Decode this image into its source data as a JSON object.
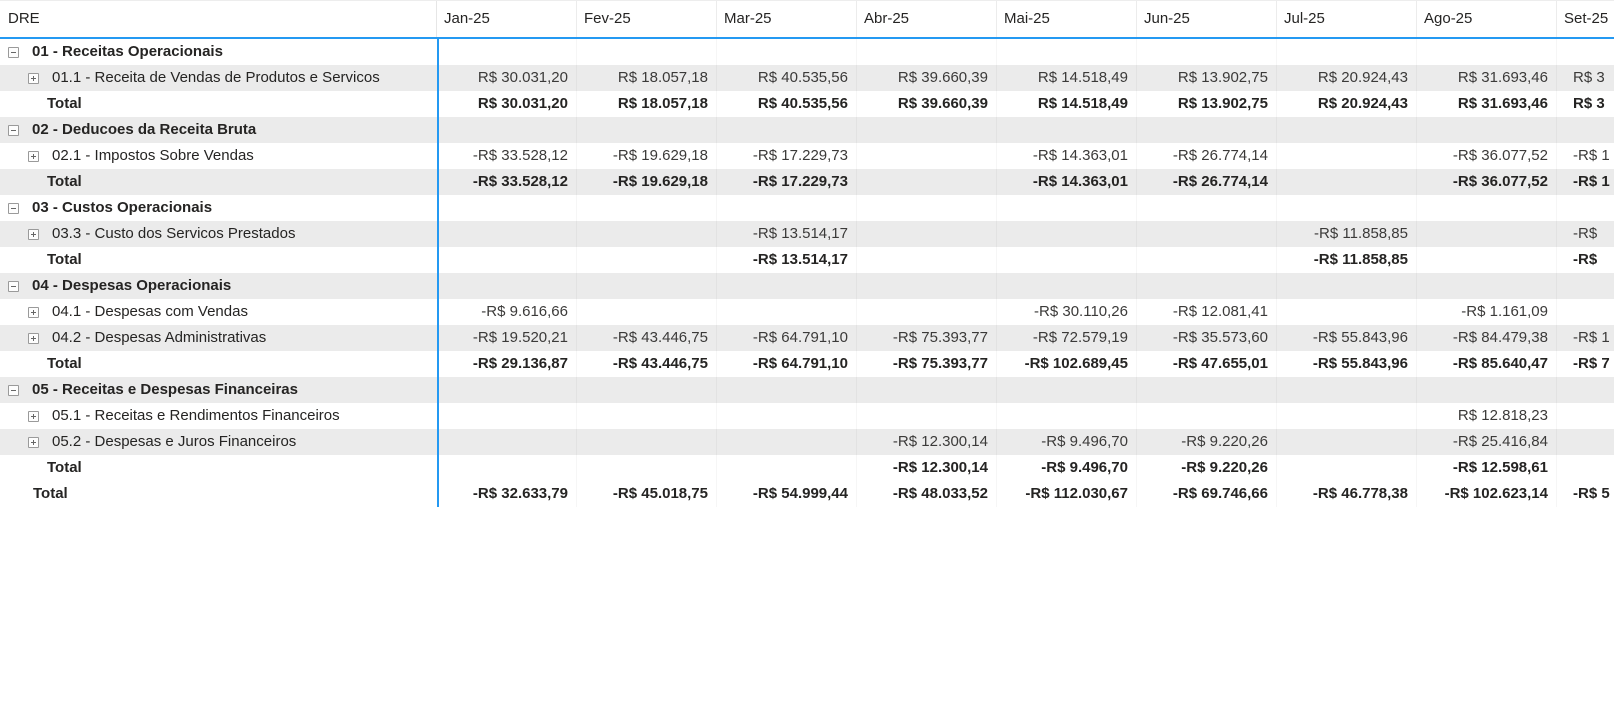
{
  "colors": {
    "accent_blue": "#2499f2",
    "alt_row_background": "#ebebeb",
    "text": "#252423",
    "value_text": "#3b3a39",
    "gridline": "#ececec"
  },
  "table": {
    "corner_label": "DRE",
    "columns": [
      "Jan-25",
      "Fev-25",
      "Mar-25",
      "Abr-25",
      "Mai-25",
      "Jun-25",
      "Jul-25",
      "Ago-25",
      "Set-25"
    ],
    "rows": [
      {
        "type": "group",
        "icon": "collapse",
        "label": "01 - Receitas Operacionais",
        "values": [
          "",
          "",
          "",
          "",
          "",
          "",
          "",
          "",
          ""
        ]
      },
      {
        "type": "item",
        "icon": "expand",
        "label": "01.1 - Receita de Vendas de Produtos e Servicos",
        "values": [
          "R$ 30.031,20",
          "R$ 18.057,18",
          "R$ 40.535,56",
          "R$ 39.660,39",
          "R$ 14.518,49",
          "R$ 13.902,75",
          "R$ 20.924,43",
          "R$ 31.693,46",
          "R$ 3"
        ]
      },
      {
        "type": "subtotal",
        "icon": "",
        "label": "Total",
        "values": [
          "R$ 30.031,20",
          "R$ 18.057,18",
          "R$ 40.535,56",
          "R$ 39.660,39",
          "R$ 14.518,49",
          "R$ 13.902,75",
          "R$ 20.924,43",
          "R$ 31.693,46",
          "R$ 3"
        ]
      },
      {
        "type": "group",
        "icon": "collapse",
        "label": "02 - Deducoes da Receita Bruta",
        "values": [
          "",
          "",
          "",
          "",
          "",
          "",
          "",
          "",
          ""
        ]
      },
      {
        "type": "item",
        "icon": "expand",
        "label": "02.1 - Impostos Sobre Vendas",
        "values": [
          "-R$ 33.528,12",
          "-R$ 19.629,18",
          "-R$ 17.229,73",
          "",
          "-R$ 14.363,01",
          "-R$ 26.774,14",
          "",
          "-R$ 36.077,52",
          "-R$ 1"
        ]
      },
      {
        "type": "subtotal",
        "icon": "",
        "label": "Total",
        "values": [
          "-R$ 33.528,12",
          "-R$ 19.629,18",
          "-R$ 17.229,73",
          "",
          "-R$ 14.363,01",
          "-R$ 26.774,14",
          "",
          "-R$ 36.077,52",
          "-R$ 1"
        ]
      },
      {
        "type": "group",
        "icon": "collapse",
        "label": "03 - Custos Operacionais",
        "values": [
          "",
          "",
          "",
          "",
          "",
          "",
          "",
          "",
          ""
        ]
      },
      {
        "type": "item",
        "icon": "expand",
        "label": "03.3 - Custo dos Servicos Prestados",
        "values": [
          "",
          "",
          "-R$ 13.514,17",
          "",
          "",
          "",
          "-R$ 11.858,85",
          "",
          "-R$"
        ]
      },
      {
        "type": "subtotal",
        "icon": "",
        "label": "Total",
        "values": [
          "",
          "",
          "-R$ 13.514,17",
          "",
          "",
          "",
          "-R$ 11.858,85",
          "",
          "-R$"
        ]
      },
      {
        "type": "group",
        "icon": "collapse",
        "label": "04 - Despesas Operacionais",
        "values": [
          "",
          "",
          "",
          "",
          "",
          "",
          "",
          "",
          ""
        ]
      },
      {
        "type": "item",
        "icon": "expand",
        "label": "04.1 - Despesas com Vendas",
        "values": [
          "-R$ 9.616,66",
          "",
          "",
          "",
          "-R$ 30.110,26",
          "-R$ 12.081,41",
          "",
          "-R$ 1.161,09",
          ""
        ]
      },
      {
        "type": "item",
        "icon": "expand",
        "label": "04.2 - Despesas Administrativas",
        "values": [
          "-R$ 19.520,21",
          "-R$ 43.446,75",
          "-R$ 64.791,10",
          "-R$ 75.393,77",
          "-R$ 72.579,19",
          "-R$ 35.573,60",
          "-R$ 55.843,96",
          "-R$ 84.479,38",
          "-R$ 1"
        ]
      },
      {
        "type": "subtotal",
        "icon": "",
        "label": "Total",
        "values": [
          "-R$ 29.136,87",
          "-R$ 43.446,75",
          "-R$ 64.791,10",
          "-R$ 75.393,77",
          "-R$ 102.689,45",
          "-R$ 47.655,01",
          "-R$ 55.843,96",
          "-R$ 85.640,47",
          "-R$ 7"
        ]
      },
      {
        "type": "group",
        "icon": "collapse",
        "label": "05 - Receitas e Despesas Financeiras",
        "values": [
          "",
          "",
          "",
          "",
          "",
          "",
          "",
          "",
          ""
        ]
      },
      {
        "type": "item",
        "icon": "expand",
        "label": "05.1 - Receitas e Rendimentos Financeiros",
        "values": [
          "",
          "",
          "",
          "",
          "",
          "",
          "",
          "R$ 12.818,23",
          ""
        ]
      },
      {
        "type": "item",
        "icon": "expand",
        "label": "05.2 - Despesas e Juros Financeiros",
        "values": [
          "",
          "",
          "",
          "-R$ 12.300,14",
          "-R$ 9.496,70",
          "-R$ 9.220,26",
          "",
          "-R$ 25.416,84",
          ""
        ]
      },
      {
        "type": "subtotal",
        "icon": "",
        "label": "Total",
        "values": [
          "",
          "",
          "",
          "-R$ 12.300,14",
          "-R$ 9.496,70",
          "-R$ 9.220,26",
          "",
          "-R$ 12.598,61",
          ""
        ]
      },
      {
        "type": "grandtotal",
        "icon": "",
        "label": "Total",
        "values": [
          "-R$ 32.633,79",
          "-R$ 45.018,75",
          "-R$ 54.999,44",
          "-R$ 48.033,52",
          "-R$ 112.030,67",
          "-R$ 69.746,66",
          "-R$ 46.778,38",
          "-R$ 102.623,14",
          "-R$ 5"
        ]
      }
    ]
  }
}
